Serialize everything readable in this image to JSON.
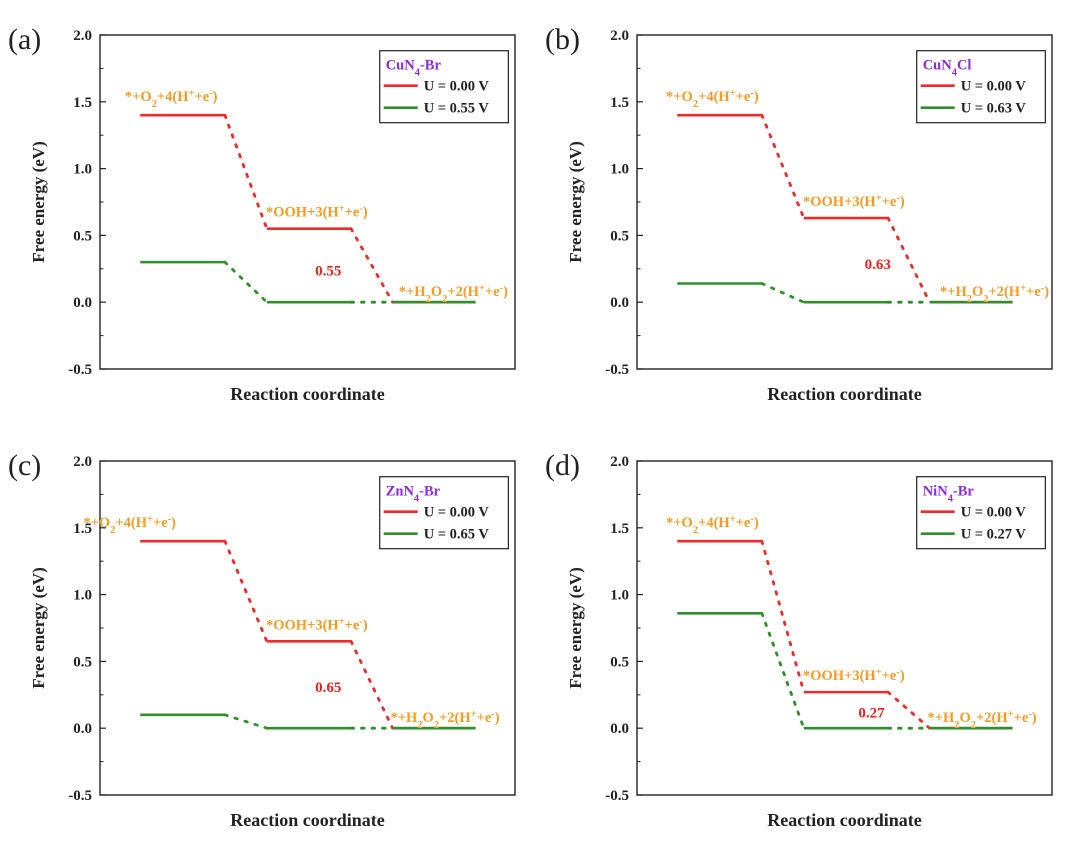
{
  "colors": {
    "u0": "#ee2b2b",
    "u1": "#2f8f2a",
    "species": "#f59a23",
    "catalyst": "#8b2be2",
    "barrier": "#e8211f",
    "axis": "#222222"
  },
  "chart_data": [
    {
      "type": "line",
      "panel_label": "(a)",
      "catalyst": "CuN4-Br",
      "ylabel": "Free energy (eV)",
      "xlabel": "Reaction coordinate",
      "ylim": [
        -0.5,
        2.0
      ],
      "yticks": [
        "2.0",
        "1.5",
        "1.0",
        "0.5",
        "0.0",
        "-0.5"
      ],
      "species": [
        "*+O2+4(H+ +e-)",
        "*OOH+3(H+ +e-)",
        "*+H2O2+2(H+ +e-)"
      ],
      "series": [
        {
          "name": "U = 0.00 V",
          "values": [
            1.4,
            0.55,
            0.0
          ]
        },
        {
          "name": "U = 0.55 V",
          "values": [
            0.3,
            0.0,
            0.0
          ]
        }
      ],
      "barrier_label": "0.55"
    },
    {
      "type": "line",
      "panel_label": "(b)",
      "catalyst": "CuN4Cl",
      "ylabel": "Free energy (eV)",
      "xlabel": "Reaction coordinate",
      "ylim": [
        -0.5,
        2.0
      ],
      "yticks": [
        "2.0",
        "1.5",
        "1.0",
        "0.5",
        "0.0",
        "-0.5"
      ],
      "species": [
        "*+O2+4(H+ +e-)",
        "*OOH+3(H+ +e-)",
        "*+H2O2+2(H+ +e-)"
      ],
      "series": [
        {
          "name": "U = 0.00 V",
          "values": [
            1.4,
            0.63,
            0.0
          ]
        },
        {
          "name": "U = 0.63 V",
          "values": [
            0.14,
            0.0,
            0.0
          ]
        }
      ],
      "barrier_label": "0.63"
    },
    {
      "type": "line",
      "panel_label": "(c)",
      "catalyst": "ZnN4-Br",
      "ylabel": "Free energy (eV)",
      "xlabel": "Reaction coordinate",
      "ylim": [
        -0.5,
        2.0
      ],
      "yticks": [
        "2.0",
        "1.5",
        "1.0",
        "0.5",
        "0.0",
        "-0.5"
      ],
      "species": [
        "*+O2+4(H+ +e-)",
        "*OOH+3(H+ +e-)",
        "*+H2O2+2(H+ +e-)"
      ],
      "series": [
        {
          "name": "U = 0.00 V",
          "values": [
            1.4,
            0.65,
            0.0
          ]
        },
        {
          "name": "U = 0.65 V",
          "values": [
            0.1,
            0.0,
            0.0
          ]
        }
      ],
      "barrier_label": "0.65"
    },
    {
      "type": "line",
      "panel_label": "(d)",
      "catalyst": "NiN4-Br",
      "ylabel": "Free energy (eV)",
      "xlabel": "Reaction coordinate",
      "ylim": [
        -0.5,
        2.0
      ],
      "yticks": [
        "2.0",
        "1.5",
        "1.0",
        "0.5",
        "0.0",
        "-0.5"
      ],
      "species": [
        "*+O2+4(H+ +e-)",
        "*OOH+3(H+ +e-)",
        "*+H2O2+2(H+ +e-)"
      ],
      "series": [
        {
          "name": "U = 0.00 V",
          "values": [
            1.4,
            0.27,
            0.0
          ]
        },
        {
          "name": "U = 0.27 V",
          "values": [
            0.86,
            0.0,
            0.0
          ]
        }
      ],
      "barrier_label": "0.27"
    }
  ]
}
